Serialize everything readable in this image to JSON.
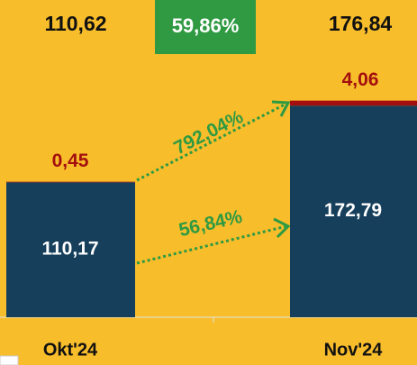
{
  "chart_data": {
    "type": "stacked_bar",
    "categories": [
      "Okt'24",
      "Nov'24"
    ],
    "series": [
      {
        "name": "base",
        "color": "#163f5b",
        "values": [
          110.17,
          172.79
        ],
        "value_labels": [
          "110,17",
          "172,79"
        ]
      },
      {
        "name": "top",
        "color": "#a30f0f",
        "values": [
          0.45,
          4.06
        ],
        "value_labels": [
          "0,45",
          "4,06"
        ]
      }
    ],
    "totals": {
      "values": [
        110.62,
        176.84
      ],
      "value_labels": [
        "110,62",
        "176,84"
      ]
    },
    "annotations": {
      "total_growth": "59,86%",
      "top_growth": "792,04%",
      "base_growth": "56,84%"
    },
    "ylim": [
      0,
      259
    ]
  }
}
